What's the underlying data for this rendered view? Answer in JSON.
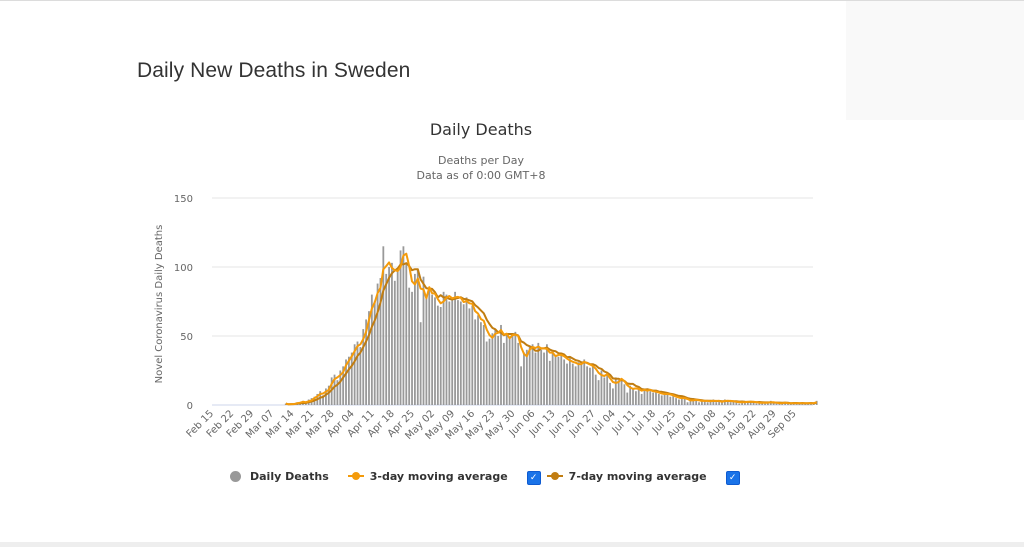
{
  "page": {
    "title": "Daily New Deaths in Sweden"
  },
  "chart_data": {
    "type": "bar",
    "title": "Daily Deaths",
    "subtitle_lines": [
      "Deaths per Day",
      "Data as of 0:00 GMT+8"
    ],
    "xlabel": "",
    "ylabel": "Novel Coronavirus Daily Deaths",
    "ylim": [
      0,
      150
    ],
    "y_ticks": [
      0,
      50,
      100,
      150
    ],
    "grid": true,
    "legend_position": "bottom-center",
    "x_tick_labels": [
      "Feb 15",
      "Feb 22",
      "Feb 29",
      "Mar 07",
      "Mar 14",
      "Mar 21",
      "Mar 28",
      "Apr 04",
      "Apr 11",
      "Apr 18",
      "Apr 25",
      "May 02",
      "May 09",
      "May 16",
      "May 23",
      "May 30",
      "Jun 06",
      "Jun 13",
      "Jun 20",
      "Jun 27",
      "Jul 04",
      "Jul 11",
      "Jul 18",
      "Jul 25",
      "Aug 01",
      "Aug 08",
      "Aug 15",
      "Aug 22",
      "Aug 29",
      "Sep 05"
    ],
    "x_start": "Feb 15",
    "data_start_day_offset": 25,
    "daily_deaths": [
      1,
      0,
      1,
      1,
      2,
      2,
      3,
      1,
      4,
      5,
      6,
      8,
      10,
      7,
      12,
      14,
      20,
      22,
      18,
      25,
      28,
      33,
      35,
      38,
      44,
      46,
      42,
      55,
      62,
      68,
      80,
      75,
      88,
      92,
      115,
      95,
      100,
      103,
      90,
      98,
      112,
      115,
      102,
      85,
      82,
      95,
      98,
      60,
      93,
      79,
      84,
      80,
      78,
      72,
      71,
      82,
      80,
      75,
      77,
      82,
      76,
      75,
      73,
      78,
      70,
      72,
      62,
      65,
      60,
      58,
      46,
      48,
      52,
      55,
      50,
      58,
      45,
      52,
      48,
      52,
      53,
      45,
      28,
      38,
      40,
      42,
      44,
      38,
      45,
      40,
      38,
      44,
      32,
      38,
      36,
      35,
      38,
      33,
      30,
      34,
      30,
      28,
      31,
      30,
      33,
      28,
      27,
      30,
      22,
      18,
      25,
      20,
      22,
      16,
      12,
      20,
      18,
      19,
      15,
      9,
      14,
      12,
      10,
      13,
      8,
      12,
      11,
      10,
      9,
      10,
      8,
      7,
      9,
      8,
      6,
      7,
      5,
      4,
      6,
      5,
      2,
      3,
      5,
      3,
      2,
      4,
      3,
      2,
      3,
      4,
      2,
      3,
      2,
      4,
      3,
      2,
      3,
      2,
      1,
      3,
      2,
      2,
      3,
      2,
      1,
      2,
      2,
      1,
      2,
      3,
      1,
      1,
      2,
      1,
      2,
      1,
      1,
      2,
      1,
      1,
      2,
      1,
      1,
      2,
      1,
      3
    ],
    "series": [
      {
        "name": "Daily Deaths",
        "kind": "bar",
        "color": "#999999"
      },
      {
        "name": "3-day moving average",
        "kind": "line",
        "color": "#f49b0b"
      },
      {
        "name": "7-day moving average",
        "kind": "line",
        "color": "#c17d11"
      }
    ]
  },
  "legend": {
    "items": [
      {
        "label": "Daily Deaths",
        "color": "#999999",
        "has_checkbox": false
      },
      {
        "label": "3-day moving average",
        "color": "#f49b0b",
        "has_checkbox": true,
        "checked": true
      },
      {
        "label": "7-day moving average",
        "color": "#c17d11",
        "has_checkbox": true,
        "checked": true
      }
    ],
    "checkmark": "✓"
  }
}
